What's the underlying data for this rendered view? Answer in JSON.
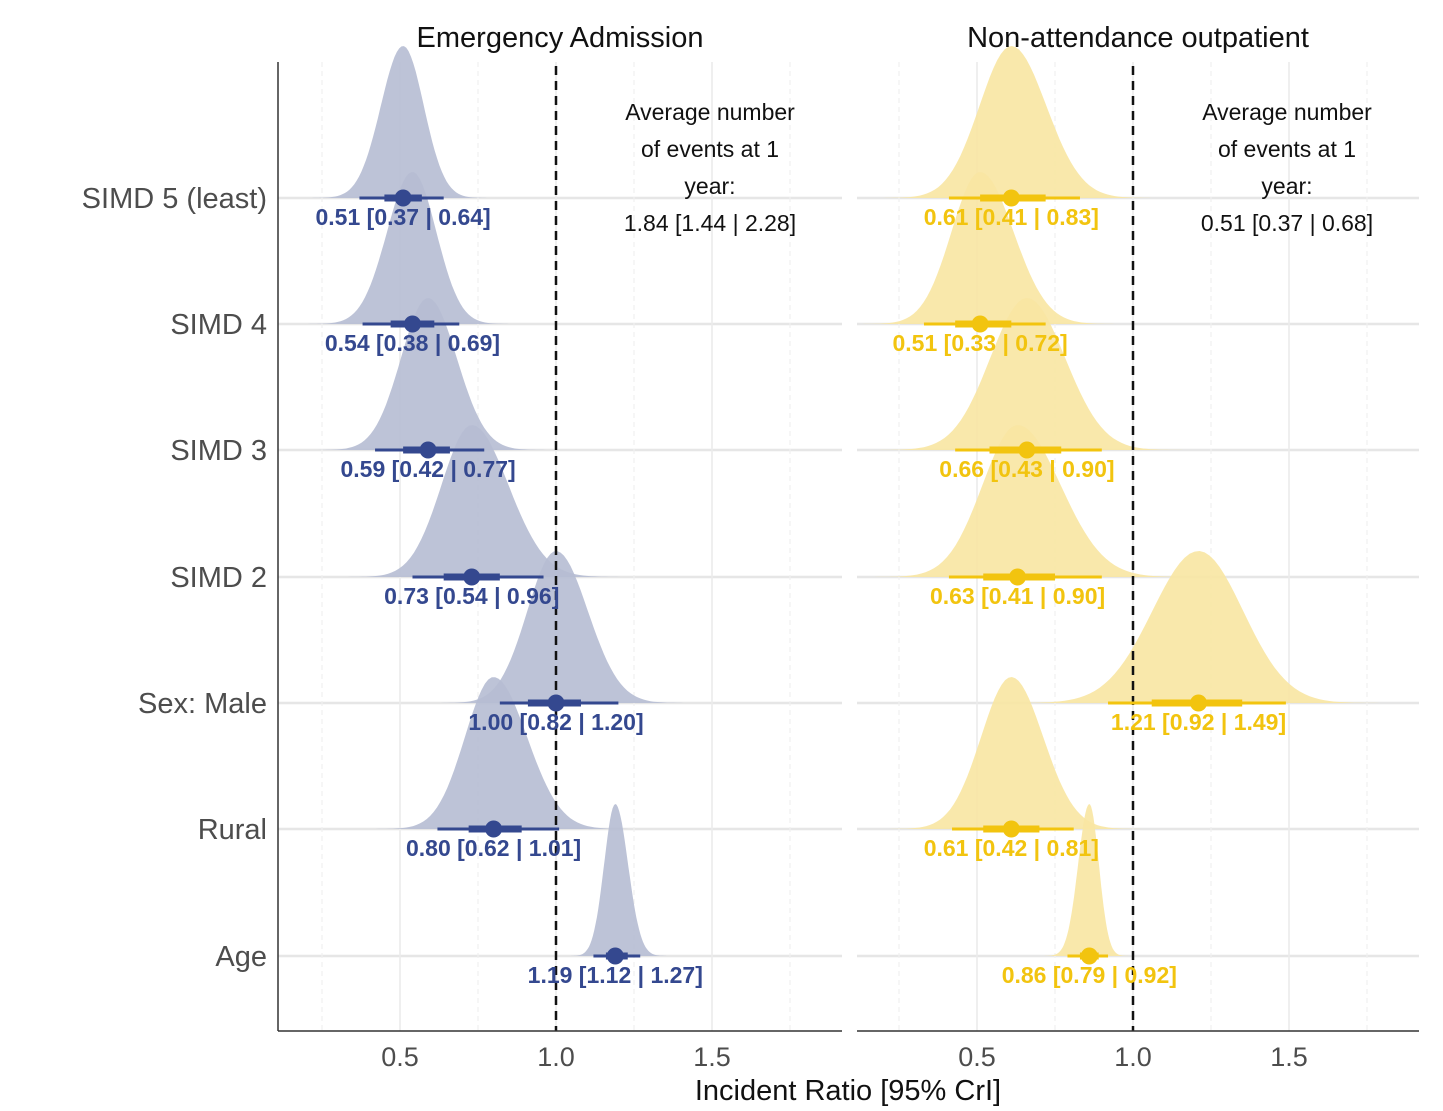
{
  "chart_data": {
    "type": "ridgeline",
    "xlabel": "Incident Ratio [95% CrI]",
    "x_ticks": [
      0.5,
      1.0,
      1.5
    ],
    "x_tick_labels": [
      "0.5",
      "1.0",
      "1.5"
    ],
    "xlim": [
      0.1,
      1.9
    ],
    "reference_line": 1.0,
    "grid": true,
    "categories": [
      "SIMD 5 (least)",
      "SIMD 4",
      "SIMD 3",
      "SIMD 2",
      "Sex: Male",
      "Rural",
      "Age"
    ],
    "panels": [
      {
        "title": "Emergency Admission",
        "color": "#34488f",
        "fill_color": "#b6bdd3",
        "annotation": [
          "Average number",
          "of events at 1",
          "year:",
          "1.84 [1.44 | 2.28]"
        ],
        "rows": [
          {
            "category": "SIMD 5 (least)",
            "estimate": 0.51,
            "lower": 0.37,
            "upper": 0.64,
            "inner": [
              0.45,
              0.57
            ],
            "label": "0.51 [0.37 | 0.64]"
          },
          {
            "category": "SIMD 4",
            "estimate": 0.54,
            "lower": 0.38,
            "upper": 0.69,
            "inner": [
              0.47,
              0.61
            ],
            "label": "0.54 [0.38 | 0.69]"
          },
          {
            "category": "SIMD 3",
            "estimate": 0.59,
            "lower": 0.42,
            "upper": 0.77,
            "inner": [
              0.51,
              0.66
            ],
            "label": "0.59 [0.42 | 0.77]"
          },
          {
            "category": "SIMD 2",
            "estimate": 0.73,
            "lower": 0.54,
            "upper": 0.96,
            "inner": [
              0.64,
              0.82
            ],
            "label": "0.73 [0.54 | 0.96]"
          },
          {
            "category": "Sex: Male",
            "estimate": 1.0,
            "lower": 0.82,
            "upper": 1.2,
            "inner": [
              0.91,
              1.08
            ],
            "label": "1.00 [0.82 | 1.20]"
          },
          {
            "category": "Rural",
            "estimate": 0.8,
            "lower": 0.62,
            "upper": 1.01,
            "inner": [
              0.72,
              0.89
            ],
            "label": "0.80 [0.62 | 1.01]"
          },
          {
            "category": "Age",
            "estimate": 1.19,
            "lower": 1.12,
            "upper": 1.27,
            "inner": [
              1.16,
              1.23
            ],
            "label": "1.19 [1.12 | 1.27]"
          }
        ]
      },
      {
        "title": "Non-attendance outpatient",
        "color": "#f2c40f",
        "fill_color": "#f8e6a2",
        "annotation": [
          "Average number",
          "of events at 1",
          "year:",
          "0.51 [0.37 | 0.68]"
        ],
        "rows": [
          {
            "category": "SIMD 5 (least)",
            "estimate": 0.61,
            "lower": 0.41,
            "upper": 0.83,
            "inner": [
              0.51,
              0.72
            ],
            "label": "0.61 [0.41 | 0.83]"
          },
          {
            "category": "SIMD 4",
            "estimate": 0.51,
            "lower": 0.33,
            "upper": 0.72,
            "inner": [
              0.43,
              0.61
            ],
            "label": "0.51 [0.33 | 0.72]"
          },
          {
            "category": "SIMD 3",
            "estimate": 0.66,
            "lower": 0.43,
            "upper": 0.9,
            "inner": [
              0.54,
              0.77
            ],
            "label": "0.66 [0.43 | 0.90]"
          },
          {
            "category": "SIMD 2",
            "estimate": 0.63,
            "lower": 0.41,
            "upper": 0.9,
            "inner": [
              0.52,
              0.75
            ],
            "label": "0.63 [0.41 | 0.90]"
          },
          {
            "category": "Sex: Male",
            "estimate": 1.21,
            "lower": 0.92,
            "upper": 1.49,
            "inner": [
              1.06,
              1.35
            ],
            "label": "1.21 [0.92 | 1.49]"
          },
          {
            "category": "Rural",
            "estimate": 0.61,
            "lower": 0.42,
            "upper": 0.81,
            "inner": [
              0.52,
              0.7
            ],
            "label": "0.61 [0.42 | 0.81]"
          },
          {
            "category": "Age",
            "estimate": 0.86,
            "lower": 0.79,
            "upper": 0.92,
            "inner": [
              0.83,
              0.89
            ],
            "label": "0.86 [0.79 | 0.92]"
          }
        ]
      }
    ]
  }
}
